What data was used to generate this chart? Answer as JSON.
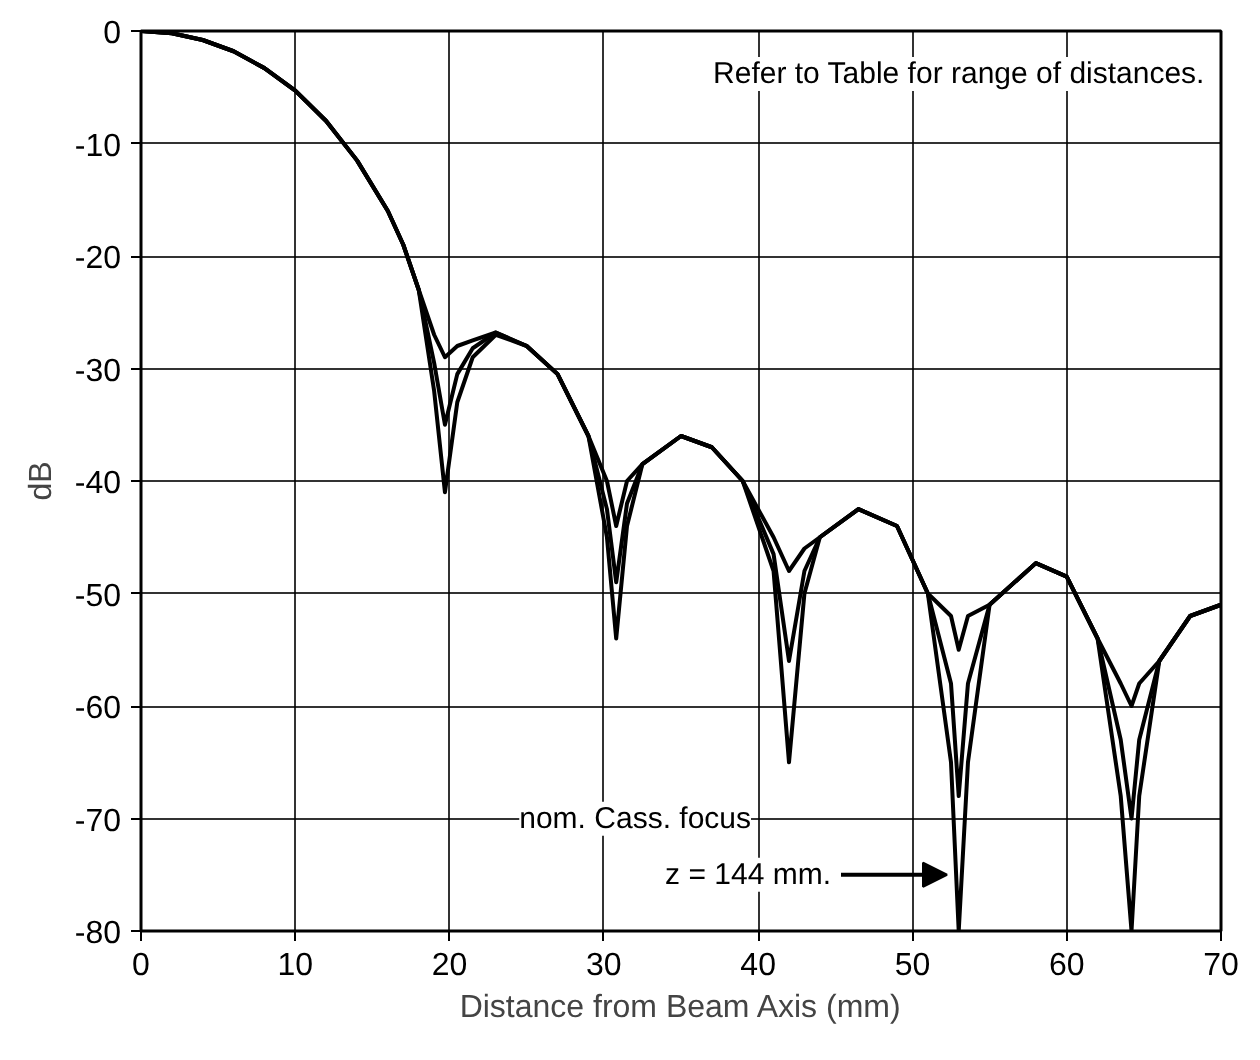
{
  "chart_data": {
    "type": "line",
    "xlabel": "Distance from Beam Axis (mm)",
    "ylabel": "dB",
    "x": [
      0,
      2,
      4,
      6,
      8,
      10,
      12,
      14,
      16,
      17,
      18,
      19,
      19.7,
      20.5,
      21.5,
      23,
      25,
      27,
      29,
      30.2,
      30.8,
      31.5,
      32.5,
      35,
      37,
      39,
      41,
      42,
      43,
      44,
      46.5,
      49,
      51,
      52.5,
      53,
      53.6,
      55,
      58,
      60,
      62,
      63.5,
      64.2,
      64.7,
      66,
      68,
      70
    ],
    "series": [
      {
        "color": "#000000",
        "values": [
          0,
          -0.2,
          -0.8,
          -1.8,
          -3.3,
          -5.3,
          -8,
          -11.5,
          -16,
          -19,
          -23,
          -27,
          -29,
          -28,
          -27.5,
          -26.8,
          -28,
          -30.5,
          -36,
          -40,
          -44,
          -40,
          -38.5,
          -36,
          -37,
          -40,
          -45,
          -48,
          -46,
          -45,
          -42.5,
          -44,
          -50,
          -52,
          -55,
          -52,
          -51,
          -47.3,
          -48.5,
          -54,
          -58,
          -60,
          -58,
          -56,
          -52,
          -51
        ]
      },
      {
        "color": "#000000",
        "values": [
          0,
          -0.2,
          -0.8,
          -1.8,
          -3.3,
          -5.3,
          -8,
          -11.5,
          -16,
          -19,
          -23,
          -29.5,
          -35,
          -30.5,
          -28.2,
          -26.8,
          -28,
          -30.5,
          -36,
          -42.5,
          -49,
          -42,
          -38.5,
          -36,
          -37,
          -40,
          -46.5,
          -56,
          -48,
          -45,
          -42.5,
          -44,
          -50,
          -58,
          -68,
          -58,
          -51,
          -47.3,
          -48.5,
          -54,
          -63,
          -70,
          -63,
          -56,
          -52,
          -51
        ]
      },
      {
        "color": "#000000",
        "values": [
          0,
          -0.2,
          -0.8,
          -1.8,
          -3.3,
          -5.3,
          -8,
          -11.5,
          -16,
          -19,
          -23,
          -32,
          -41,
          -33,
          -29,
          -27,
          -28,
          -30.5,
          -36,
          -45,
          -54,
          -44,
          -38.5,
          -36,
          -37,
          -40,
          -48,
          -65,
          -50,
          -45,
          -42.5,
          -44,
          -50,
          -65,
          -80,
          -65,
          -51,
          -47.3,
          -48.5,
          -54,
          -68,
          -80,
          -68,
          -56,
          -52,
          -51
        ]
      }
    ],
    "xlim": [
      0,
      70
    ],
    "xticks": [
      0,
      10,
      20,
      30,
      40,
      50,
      60,
      70
    ],
    "ylim": [
      -80,
      0
    ],
    "yticks": [
      -80,
      -70,
      -60,
      -50,
      -40,
      -30,
      -20,
      -10,
      0
    ],
    "grid": true,
    "marker": "none",
    "line_style": "solid",
    "annotations": [
      "Refer to Table for range of distances.",
      {
        "text": "nom. Cass. focus\nz = 144 mm.",
        "x": 52.5,
        "y": -75
      }
    ]
  }
}
